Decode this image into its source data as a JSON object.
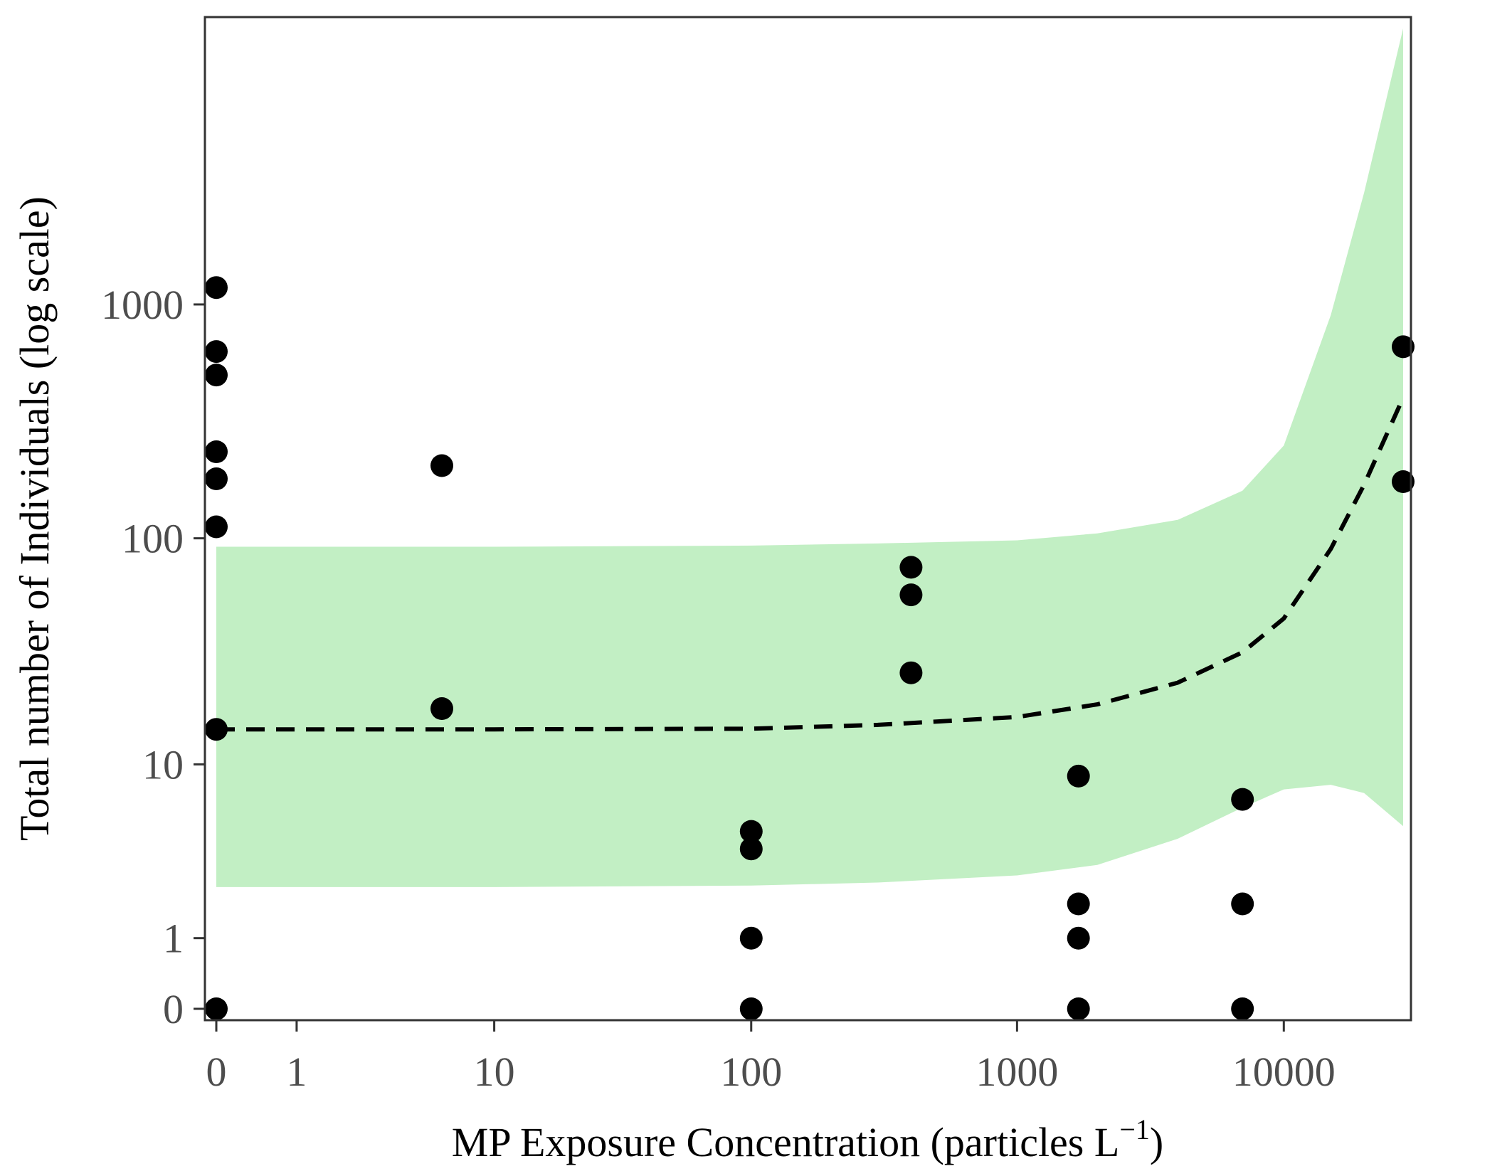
{
  "chart_data": {
    "type": "scatter",
    "xlabel": "MP Exposure Concentration (particles L",
    "xlabel_sup": "−1",
    "xlabel_end": ")",
    "ylabel": "Total number of Individuals (log scale)",
    "x_scale": "log1p",
    "y_scale": "log1p",
    "xlim": [
      0,
      28000
    ],
    "ylim": [
      0,
      15000
    ],
    "x_ticks": [
      0,
      1,
      10,
      100,
      1000,
      10000
    ],
    "x_tick_labels": [
      "0",
      "1",
      "10",
      "100",
      "1000",
      "10000"
    ],
    "y_ticks": [
      0,
      1,
      10,
      100,
      1000
    ],
    "y_tick_labels": [
      "0",
      "1",
      "10",
      "100",
      "1000"
    ],
    "grid": false,
    "colors": {
      "band": "#c2efc4",
      "points": "#000000",
      "fit": "#000000",
      "frame": "#333333"
    },
    "points": [
      {
        "x": 0,
        "y": 1180
      },
      {
        "x": 0,
        "y": 630
      },
      {
        "x": 0,
        "y": 500
      },
      {
        "x": 0,
        "y": 235
      },
      {
        "x": 0,
        "y": 180
      },
      {
        "x": 0,
        "y": 112
      },
      {
        "x": 0,
        "y": 14.5
      },
      {
        "x": 0,
        "y": 0
      },
      {
        "x": 6,
        "y": 205
      },
      {
        "x": 6,
        "y": 18
      },
      {
        "x": 100,
        "y": 4.7
      },
      {
        "x": 100,
        "y": 3.8
      },
      {
        "x": 100,
        "y": 1
      },
      {
        "x": 100,
        "y": 0
      },
      {
        "x": 400,
        "y": 75
      },
      {
        "x": 400,
        "y": 57
      },
      {
        "x": 400,
        "y": 26
      },
      {
        "x": 1700,
        "y": 8.8
      },
      {
        "x": 1700,
        "y": 1.8
      },
      {
        "x": 1700,
        "y": 1
      },
      {
        "x": 1700,
        "y": 0
      },
      {
        "x": 7000,
        "y": 6.8
      },
      {
        "x": 7000,
        "y": 1.8
      },
      {
        "x": 7000,
        "y": 0
      },
      {
        "x": 28000,
        "y": 660
      },
      {
        "x": 28000,
        "y": 175
      }
    ],
    "fit_line": {
      "style": "dashed",
      "x": [
        0,
        1,
        10,
        100,
        300,
        1000,
        2000,
        4000,
        7000,
        10000,
        15000,
        20000,
        28000
      ],
      "y": [
        14.5,
        14.5,
        14.5,
        14.6,
        15.2,
        16.5,
        18.8,
        23.5,
        32,
        45,
        90,
        170,
        400
      ]
    },
    "confidence_band": {
      "x": [
        0,
        1,
        10,
        100,
        300,
        1000,
        2000,
        4000,
        7000,
        10000,
        15000,
        20000,
        28000
      ],
      "upper": [
        92,
        92,
        92,
        93,
        95,
        98,
        105,
        120,
        160,
        250,
        900,
        3000,
        15000
      ],
      "lower": [
        2.3,
        2.3,
        2.3,
        2.35,
        2.45,
        2.7,
        3.1,
        4.3,
        6.2,
        7.6,
        8.0,
        7.3,
        5.0
      ]
    }
  }
}
